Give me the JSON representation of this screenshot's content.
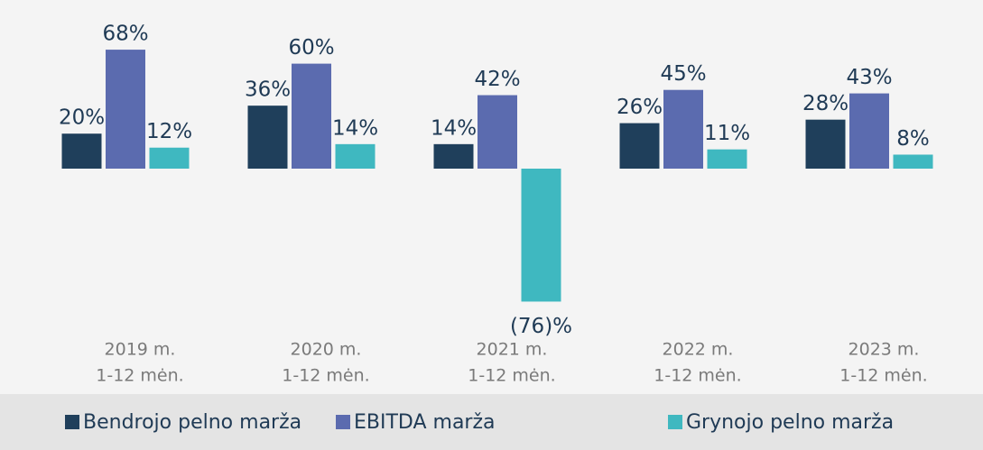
{
  "chart_data": {
    "type": "bar",
    "categories": [
      [
        "2019 m.",
        "1-12 mėn."
      ],
      [
        "2020 m.",
        "1-12 mėn."
      ],
      [
        "2021 m.",
        "1-12 mėn."
      ],
      [
        "2022 m.",
        "1-12 mėn."
      ],
      [
        "2023 m.",
        "1-12 mėn."
      ]
    ],
    "series": [
      {
        "name": "Bendrojo pelno marža",
        "color": "#1f3f5b",
        "values": [
          20,
          36,
          14,
          26,
          28
        ],
        "value_labels": [
          "20%",
          "36%",
          "14%",
          "26%",
          "28%"
        ]
      },
      {
        "name": "EBITDA marža",
        "color": "#5b6baf",
        "values": [
          68,
          60,
          42,
          45,
          43
        ],
        "value_labels": [
          "68%",
          "60%",
          "42%",
          "45%",
          "43%"
        ]
      },
      {
        "name": "Grynojo pelno marža",
        "color": "#3fb8c0",
        "values": [
          12,
          14,
          -76,
          11,
          8
        ],
        "value_labels": [
          "12%",
          "14%",
          "(76)%",
          "11%",
          "8%"
        ]
      }
    ],
    "legend": "bottom"
  }
}
